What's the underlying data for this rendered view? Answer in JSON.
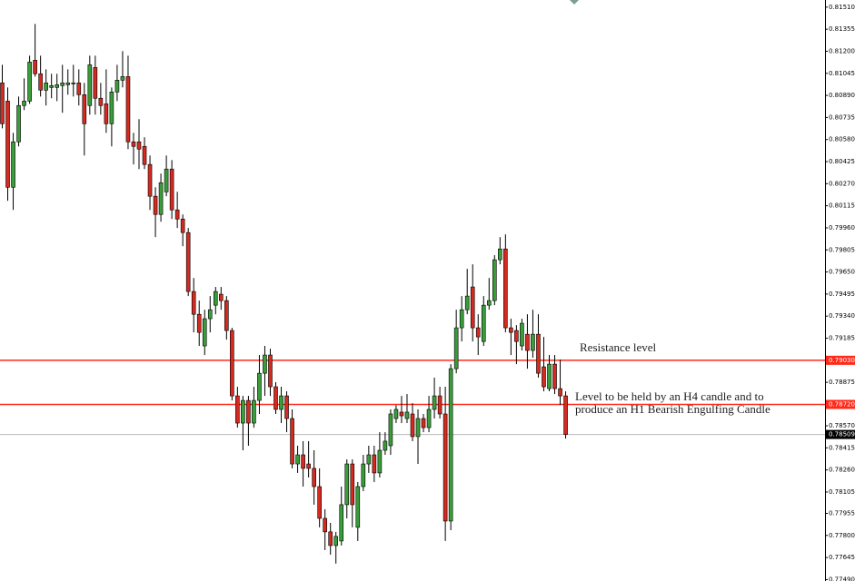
{
  "chart_data": {
    "type": "candlestick",
    "up_color": "#3a9d3a",
    "down_color": "#d42a20",
    "ylim": [
      0.7748,
      0.8156
    ],
    "yticks": [
      {
        "value": 0.8151,
        "label": "0.81510"
      },
      {
        "value": 0.81355,
        "label": "0.81355"
      },
      {
        "value": 0.812,
        "label": "0.81200"
      },
      {
        "value": 0.81045,
        "label": "0.81045"
      },
      {
        "value": 0.8089,
        "label": "0.80890"
      },
      {
        "value": 0.80735,
        "label": "0.80735"
      },
      {
        "value": 0.8058,
        "label": "0.80580"
      },
      {
        "value": 0.80425,
        "label": "0.80425"
      },
      {
        "value": 0.8027,
        "label": "0.80270"
      },
      {
        "value": 0.80115,
        "label": "0.80115"
      },
      {
        "value": 0.7996,
        "label": "0.79960"
      },
      {
        "value": 0.79805,
        "label": "0.79805"
      },
      {
        "value": 0.7965,
        "label": "0.79650"
      },
      {
        "value": 0.79495,
        "label": "0.79495"
      },
      {
        "value": 0.7934,
        "label": "0.79340"
      },
      {
        "value": 0.79185,
        "label": "0.79185"
      },
      {
        "value": 0.78875,
        "label": "0.78875"
      },
      {
        "value": 0.7857,
        "label": "0.78570"
      },
      {
        "value": 0.78415,
        "label": "0.78415"
      },
      {
        "value": 0.7826,
        "label": "0.78260"
      },
      {
        "value": 0.78105,
        "label": "0.78105"
      },
      {
        "value": 0.77955,
        "label": "0.77955"
      },
      {
        "value": 0.778,
        "label": "0.77800"
      },
      {
        "value": 0.77645,
        "label": "0.77645"
      },
      {
        "value": 0.7749,
        "label": "0.77490"
      }
    ],
    "levels": [
      {
        "value": 0.7903,
        "label": "0.79030",
        "color": "#ff2a1a"
      },
      {
        "value": 0.7872,
        "label": "0.78720",
        "color": "#ff2a1a"
      },
      {
        "value": 0.78509,
        "label": "0.78509",
        "color": "#000000"
      }
    ],
    "annotations": [
      "Resistance level",
      "Level to be held by an H4 candle and to",
      "produce an H1 Bearish Engulfing Candle"
    ],
    "open": [
      0.80978,
      0.8085,
      0.80245,
      0.80564,
      0.80819,
      0.8085,
      0.81137,
      0.81042,
      0.80927,
      0.80946,
      0.80946,
      0.80959,
      0.80965,
      0.80971,
      0.80978,
      0.80895,
      0.80819,
      0.81086,
      0.8087,
      0.80831,
      0.80691,
      0.80914,
      0.80997,
      0.81022,
      0.80564,
      0.80564,
      0.80532,
      0.80405,
      0.80182,
      0.80054,
      0.80213,
      0.80373,
      0.80086,
      0.80022,
      0.79927,
      0.79513,
      0.79353,
      0.79131,
      0.79322,
      0.79417,
      0.79494,
      0.79449,
      0.79239,
      0.7878,
      0.78589,
      0.78748,
      0.78589,
      0.78748,
      0.78939,
      0.79067,
      0.78844,
      0.78685,
      0.7878,
      0.78621,
      0.78302,
      0.78366,
      0.78302,
      0.78271,
      0.78143,
      0.7792,
      0.77825,
      0.77729,
      0.77761,
      0.78016,
      0.78302,
      0.77857,
      0.78143,
      0.78302,
      0.78366,
      0.78239,
      0.78398,
      0.7843,
      0.78621,
      0.78666,
      0.78621,
      0.78653,
      0.78494,
      0.78621,
      0.78557,
      0.78685,
      0.7878,
      0.78653,
      0.77901,
      0.78971,
      0.79258,
      0.79385,
      0.79545,
      0.79258,
      0.79162,
      0.79417,
      0.79449,
      0.79736,
      0.79812,
      0.79258,
      0.79239,
      0.79131,
      0.79213,
      0.79099,
      0.79213,
      0.78984,
      0.78831,
      0.79003,
      0.78831,
      0.7878
    ],
    "high": [
      0.81105,
      0.80946,
      0.80627,
      0.80882,
      0.8101,
      0.81169,
      0.81392,
      0.81169,
      0.81073,
      0.81042,
      0.81042,
      0.81105,
      0.81073,
      0.81105,
      0.81073,
      0.80978,
      0.81169,
      0.81169,
      0.80978,
      0.81073,
      0.80946,
      0.81105,
      0.81201,
      0.81169,
      0.80627,
      0.80723,
      0.80596,
      0.80468,
      0.80245,
      0.80341,
      0.80468,
      0.80436,
      0.80213,
      0.80054,
      0.79959,
      0.79608,
      0.79449,
      0.79385,
      0.79481,
      0.79545,
      0.79545,
      0.79481,
      0.79258,
      0.78844,
      0.7878,
      0.7878,
      0.78844,
      0.79067,
      0.79131,
      0.79111,
      0.78876,
      0.78844,
      0.78812,
      0.78685,
      0.7843,
      0.78462,
      0.78462,
      0.78398,
      0.78271,
      0.77984,
      0.77888,
      0.77825,
      0.78143,
      0.78334,
      0.78334,
      0.78175,
      0.78366,
      0.7843,
      0.7843,
      0.78525,
      0.78525,
      0.78685,
      0.78716,
      0.7878,
      0.78793,
      0.78729,
      0.78685,
      0.78653,
      0.7878,
      0.78908,
      0.78844,
      0.78844,
      0.79003,
      0.79385,
      0.79481,
      0.79672,
      0.79704,
      0.79353,
      0.79481,
      0.79608,
      0.79768,
      0.79895,
      0.79914,
      0.79322,
      0.79277,
      0.79322,
      0.79353,
      0.79385,
      0.79353,
      0.79194,
      0.79067,
      0.79067,
      0.79035,
      0.78812
    ],
    "low": [
      0.80659,
      0.8015,
      0.80086,
      0.80532,
      0.80787,
      0.80831,
      0.81022,
      0.80882,
      0.80819,
      0.8087,
      0.8085,
      0.80768,
      0.80895,
      0.80882,
      0.80819,
      0.80468,
      0.80755,
      0.80755,
      0.80755,
      0.80627,
      0.80532,
      0.8085,
      0.80946,
      0.80513,
      0.80405,
      0.80373,
      0.80373,
      0.80086,
      0.79895,
      0.80003,
      0.80182,
      0.80022,
      0.79959,
      0.79831,
      0.79481,
      0.79226,
      0.79131,
      0.79067,
      0.79226,
      0.79353,
      0.79385,
      0.79175,
      0.78748,
      0.78557,
      0.78398,
      0.7843,
      0.78557,
      0.78653,
      0.7878,
      0.7878,
      0.78653,
      0.78589,
      0.78525,
      0.78271,
      0.78239,
      0.78143,
      0.78207,
      0.78016,
      0.77857,
      0.77697,
      0.77665,
      0.77602,
      0.77729,
      0.7792,
      0.77857,
      0.77761,
      0.78111,
      0.78239,
      0.78175,
      0.78207,
      0.78366,
      0.78366,
      0.78589,
      0.78589,
      0.78589,
      0.78462,
      0.78302,
      0.78525,
      0.78525,
      0.78621,
      0.78621,
      0.77761,
      0.77837,
      0.78939,
      0.79162,
      0.79353,
      0.79162,
      0.79067,
      0.79131,
      0.79385,
      0.79417,
      0.79704,
      0.79226,
      0.79067,
      0.79003,
      0.79099,
      0.78971,
      0.79048,
      0.78908,
      0.78812,
      0.78812,
      0.78793,
      0.78716,
      0.7848
    ],
    "close": [
      0.80691,
      0.80245,
      0.80564,
      0.80819,
      0.8085,
      0.81124,
      0.81042,
      0.80927,
      0.80978,
      0.80959,
      0.80965,
      0.80978,
      0.80978,
      0.80978,
      0.80895,
      0.80691,
      0.81105,
      0.8087,
      0.80819,
      0.80691,
      0.80914,
      0.80997,
      0.81022,
      0.80564,
      0.80532,
      0.80513,
      0.80405,
      0.80182,
      0.80054,
      0.80277,
      0.80373,
      0.80086,
      0.80022,
      0.79927,
      0.79513,
      0.79353,
      0.79226,
      0.79322,
      0.79385,
      0.79513,
      0.79449,
      0.79239,
      0.7878,
      0.78589,
      0.78748,
      0.78589,
      0.78748,
      0.78939,
      0.79067,
      0.78844,
      0.78685,
      0.7878,
      0.78621,
      0.78302,
      0.78366,
      0.78271,
      0.78271,
      0.78143,
      0.7792,
      0.77825,
      0.77729,
      0.77793,
      0.78016,
      0.78302,
      0.78016,
      0.78143,
      0.78302,
      0.78366,
      0.78239,
      0.78398,
      0.78462,
      0.78653,
      0.78685,
      0.7864,
      0.78666,
      0.78494,
      0.78621,
      0.78557,
      0.78685,
      0.7878,
      0.78653,
      0.77901,
      0.78971,
      0.79258,
      0.79385,
      0.79481,
      0.79258,
      0.79194,
      0.79417,
      0.79449,
      0.79736,
      0.79812,
      0.79258,
      0.79226,
      0.79162,
      0.7929,
      0.79099,
      0.79213,
      0.78939,
      0.78844,
      0.79003,
      0.78831,
      0.7878,
      0.78509
    ]
  }
}
